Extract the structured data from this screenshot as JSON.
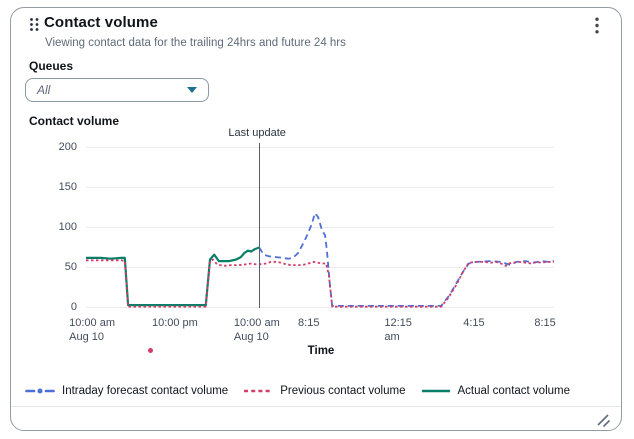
{
  "widget": {
    "title": "Contact volume",
    "subtitle": "Viewing contact data for the trailing 24hrs and future 24 hrs"
  },
  "queues": {
    "label": "Queues",
    "selected": "All"
  },
  "chart_label": "Contact volume",
  "chart_data": {
    "type": "line",
    "title": "Contact volume",
    "xlabel": "Time",
    "ylabel": "",
    "ylim": [
      0,
      200
    ],
    "grid": true,
    "legend_position": "bottom",
    "y_ticks": [
      200,
      150,
      100,
      50,
      0
    ],
    "x_ticks": [
      {
        "pos": 1.3,
        "lines": [
          "10:00 am",
          "Aug 10"
        ]
      },
      {
        "pos": 19.0,
        "lines": [
          "10:00 pm"
        ]
      },
      {
        "pos": 36.5,
        "lines": [
          "10:00 am",
          "Aug 10"
        ]
      },
      {
        "pos": 47.6,
        "lines": [
          "8:15"
        ]
      },
      {
        "pos": 66.7,
        "lines": [
          "12:15",
          "am"
        ]
      },
      {
        "pos": 82.9,
        "lines": [
          "4:15"
        ]
      },
      {
        "pos": 98.1,
        "lines": [
          "8:15"
        ]
      }
    ],
    "annotation": {
      "label": "Last update",
      "pos": 37.0
    },
    "marker_dot": {
      "pos": 13.2,
      "color": "#d23d69"
    },
    "draw_order": [
      2,
      0,
      1
    ],
    "series": [
      {
        "name": "Intraday forecast contact volume",
        "color": "#4f6fd8",
        "style": "dashed",
        "points": [
          [
            37,
            75
          ],
          [
            38,
            66
          ],
          [
            39.1,
            64
          ],
          [
            40.6,
            63
          ],
          [
            42.1,
            62
          ],
          [
            43.2,
            61
          ],
          [
            44.2,
            62
          ],
          [
            45.3,
            68
          ],
          [
            46.4,
            80
          ],
          [
            47.4,
            92
          ],
          [
            48.3,
            105
          ],
          [
            48.9,
            118
          ],
          [
            49.6,
            113
          ],
          [
            50.4,
            97
          ],
          [
            51.1,
            90
          ],
          [
            51.5,
            70
          ],
          [
            52.1,
            30
          ],
          [
            52.6,
            2
          ],
          [
            75.9,
            2
          ],
          [
            77.6,
            15
          ],
          [
            79.1,
            30
          ],
          [
            80.6,
            45
          ],
          [
            81.8,
            55
          ],
          [
            83.3,
            57
          ],
          [
            86.5,
            58
          ],
          [
            88.7,
            57
          ],
          [
            89.7,
            55
          ],
          [
            90.8,
            53
          ],
          [
            91.9,
            57
          ],
          [
            94,
            58
          ],
          [
            95.7,
            56
          ],
          [
            97.2,
            58
          ],
          [
            98.9,
            57
          ],
          [
            100,
            58
          ]
        ]
      },
      {
        "name": "Previous contact volume",
        "color": "#d23d69",
        "style": "dotted",
        "points": [
          [
            0,
            59
          ],
          [
            7.5,
            59
          ],
          [
            8.3,
            58
          ],
          [
            9,
            1
          ],
          [
            25.6,
            1
          ],
          [
            26.5,
            58
          ],
          [
            27.1,
            60
          ],
          [
            28,
            54
          ],
          [
            29.3,
            52
          ],
          [
            31,
            53
          ],
          [
            32.7,
            53
          ],
          [
            34.2,
            54
          ],
          [
            35.3,
            55
          ],
          [
            36.3,
            54
          ],
          [
            37,
            54
          ],
          [
            38.5,
            55
          ],
          [
            39.5,
            57
          ],
          [
            40.6,
            57
          ],
          [
            41.7,
            56
          ],
          [
            42.7,
            54
          ],
          [
            43.8,
            53
          ],
          [
            44.9,
            53
          ],
          [
            45.9,
            53
          ],
          [
            47,
            54
          ],
          [
            48.1,
            56
          ],
          [
            48.7,
            57
          ],
          [
            49.6,
            56
          ],
          [
            50.4,
            55
          ],
          [
            51.3,
            55
          ],
          [
            51.9,
            40
          ],
          [
            52.6,
            1
          ],
          [
            75.9,
            1
          ],
          [
            77.4,
            12
          ],
          [
            79.1,
            28
          ],
          [
            80.6,
            45
          ],
          [
            81.8,
            56
          ],
          [
            83.3,
            57
          ],
          [
            84.8,
            57
          ],
          [
            86.5,
            56
          ],
          [
            87.6,
            57
          ],
          [
            88.7,
            55
          ],
          [
            89.7,
            52
          ],
          [
            90.4,
            55
          ],
          [
            91.2,
            56
          ],
          [
            92.5,
            57
          ],
          [
            94,
            56
          ],
          [
            95.1,
            55
          ],
          [
            96.2,
            57
          ],
          [
            97.2,
            56
          ],
          [
            98.5,
            57
          ],
          [
            100,
            57
          ]
        ]
      },
      {
        "name": "Actual contact volume",
        "color": "#087f68",
        "style": "solid",
        "points": [
          [
            0,
            62
          ],
          [
            3.2,
            62
          ],
          [
            5.3,
            61
          ],
          [
            7.5,
            62
          ],
          [
            8.3,
            62
          ],
          [
            9,
            3
          ],
          [
            25.6,
            3
          ],
          [
            26.5,
            60
          ],
          [
            27.4,
            66
          ],
          [
            28.4,
            58
          ],
          [
            30.6,
            58
          ],
          [
            32.1,
            60
          ],
          [
            33.1,
            63
          ],
          [
            33.8,
            68
          ],
          [
            34.6,
            71
          ],
          [
            35.3,
            70
          ],
          [
            36.1,
            73
          ],
          [
            37,
            75
          ]
        ]
      }
    ]
  }
}
